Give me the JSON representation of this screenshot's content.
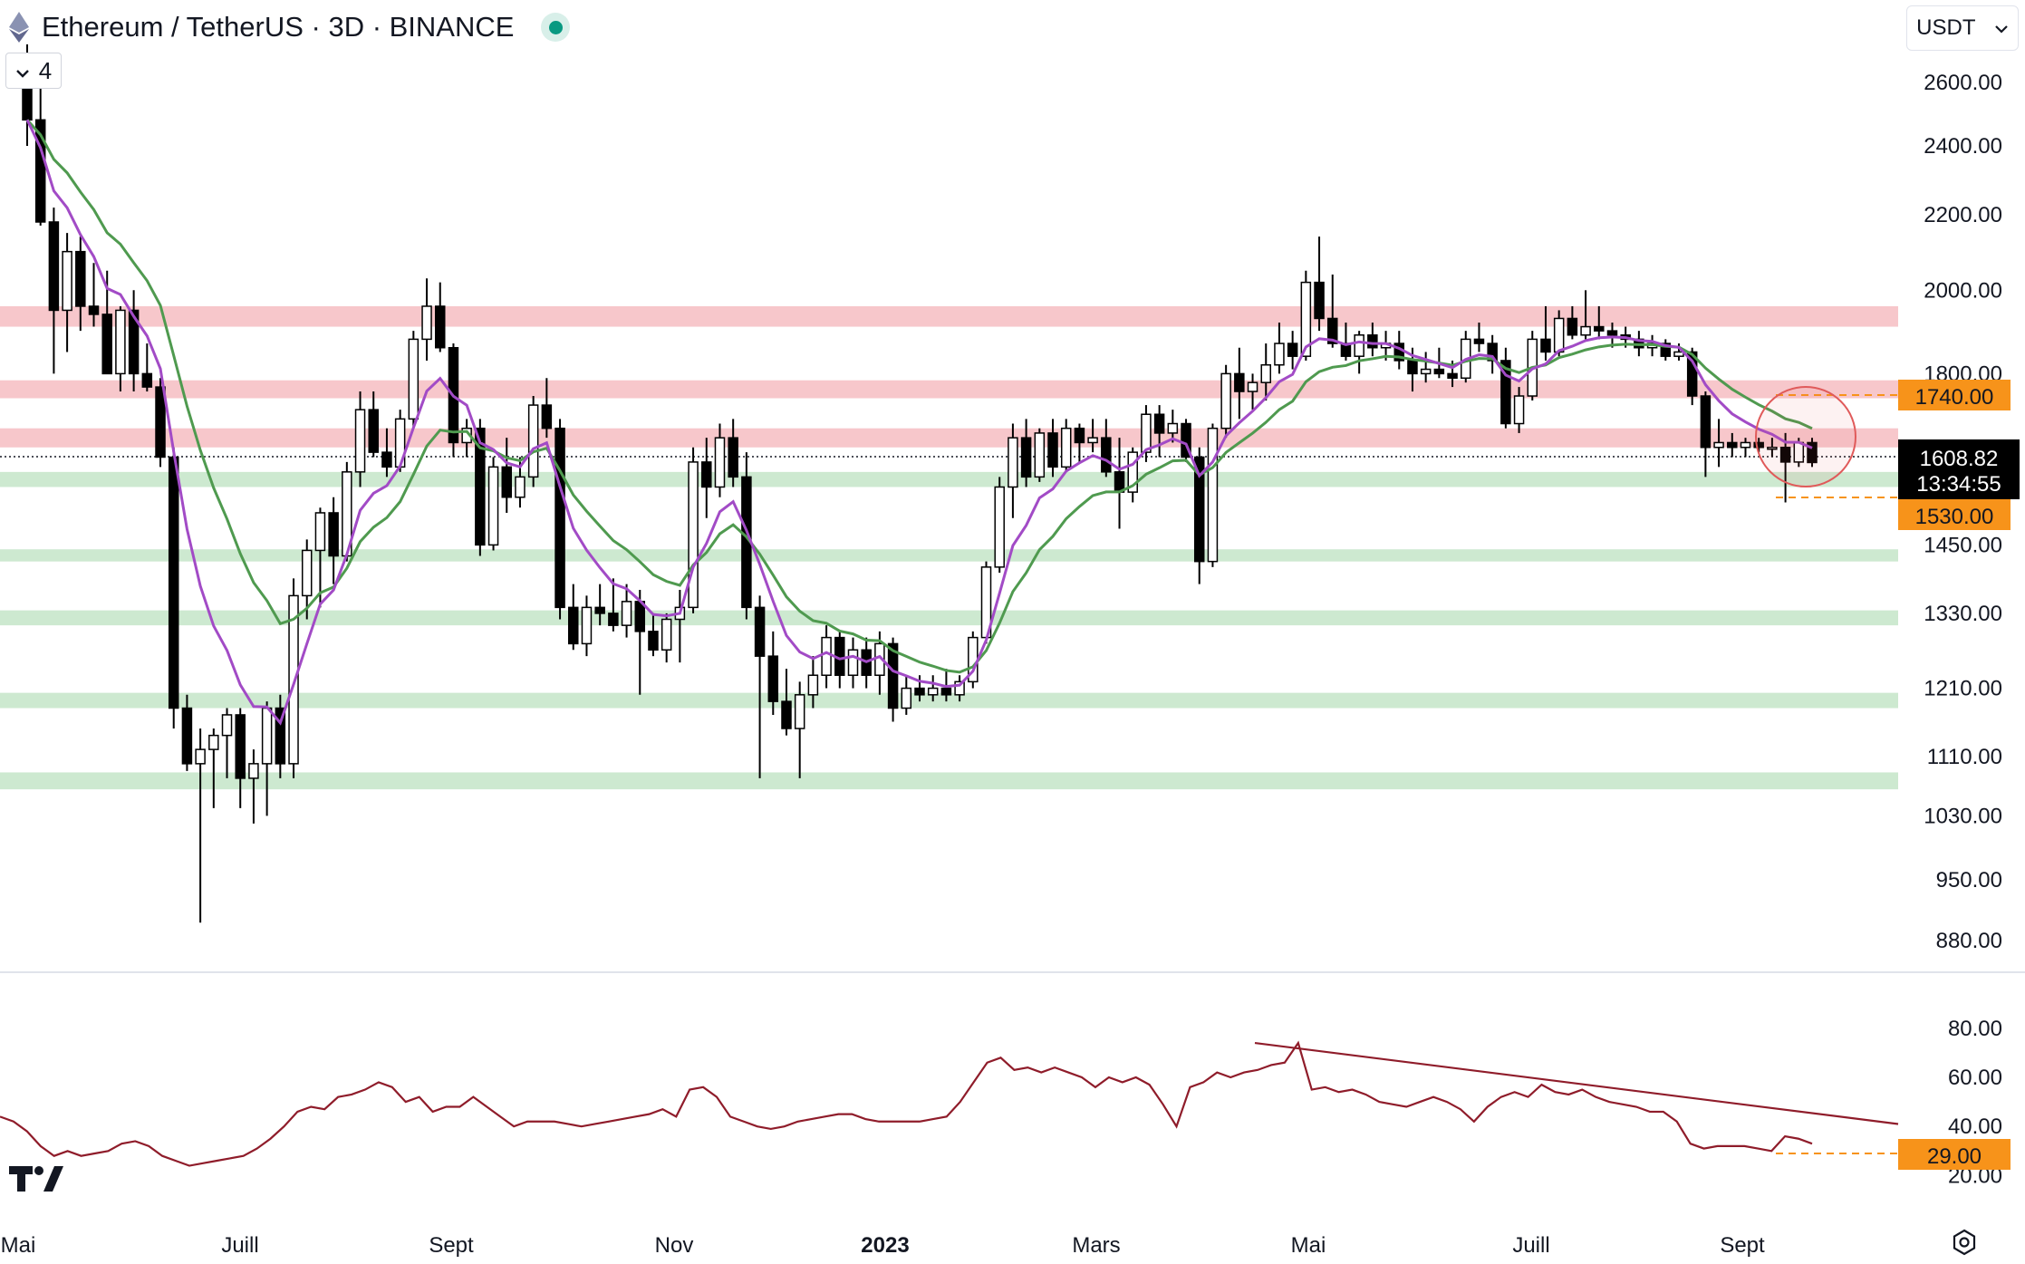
{
  "header": {
    "title": "Ethereum / TetherUS · 3D · BINANCE",
    "collapse_count": "4",
    "currency": "USDT",
    "icons": [
      "ethereum-icon",
      "live-status-dot",
      "chevron-down-icon",
      "tradingview-logo",
      "settings-icon"
    ]
  },
  "price_axis": {
    "ticks": [
      "2600.00",
      "2400.00",
      "2200.00",
      "2000.00",
      "1800.00",
      "1450.00",
      "1330.00",
      "1210.00",
      "1110.00",
      "1030.00",
      "950.00",
      "880.00"
    ],
    "level_upper": "1740.00",
    "level_lower": "1530.00",
    "last_price": "1608.82",
    "countdown": "13:34:55"
  },
  "rsi_axis": {
    "ticks": [
      "80.00",
      "60.00",
      "40.00",
      "20.00"
    ],
    "level": "29.00"
  },
  "time_axis": [
    "Mai",
    "Juill",
    "Sept",
    "Nov",
    "2023",
    "Mars",
    "Mai",
    "Juill",
    "Sept"
  ],
  "colors": {
    "candle": "#000000",
    "ema_fast": "#a24bc6",
    "ema_slow": "#4f9a4f",
    "resistance_zone": "#f7c7cb",
    "support_zone": "#cde9d0",
    "rsi_line": "#8f1c2a",
    "label_bg": "#f7931a",
    "last_price_bg": "#000000",
    "marker_circle": "#e05a5a"
  },
  "chart_data": {
    "type": "candlestick",
    "symbol": "Ethereum / TetherUS",
    "interval": "3D",
    "exchange": "BINANCE",
    "price_scale": "log",
    "price_range": [
      860,
      2700
    ],
    "resistance_zones": [
      [
        1910,
        1960
      ],
      [
        1745,
        1785
      ],
      [
        1640,
        1680
      ]
    ],
    "support_zones": [
      [
        1560,
        1590
      ],
      [
        1420,
        1442
      ],
      [
        1310,
        1335
      ],
      [
        1180,
        1203
      ],
      [
        1065,
        1088
      ]
    ],
    "horizontal_levels": [
      1740,
      1530
    ],
    "last_price": 1608.82,
    "candles_ohlc": [
      [
        2660,
        2820,
        2400,
        2480
      ],
      [
        2480,
        2650,
        2170,
        2180
      ],
      [
        2180,
        2220,
        1800,
        1950
      ],
      [
        1950,
        2150,
        1850,
        2100
      ],
      [
        2100,
        2140,
        1900,
        1960
      ],
      [
        1960,
        2070,
        1910,
        1940
      ],
      [
        1940,
        2050,
        1800,
        1800
      ],
      [
        1800,
        1960,
        1760,
        1950
      ],
      [
        1950,
        2000,
        1760,
        1800
      ],
      [
        1800,
        1870,
        1760,
        1770
      ],
      [
        1770,
        1790,
        1600,
        1620
      ],
      [
        1620,
        1640,
        1150,
        1180
      ],
      [
        1180,
        1200,
        1090,
        1100
      ],
      [
        1100,
        1150,
        900,
        1120
      ],
      [
        1120,
        1150,
        1040,
        1140
      ],
      [
        1140,
        1180,
        1080,
        1170
      ],
      [
        1170,
        1180,
        1040,
        1080
      ],
      [
        1080,
        1120,
        1020,
        1100
      ],
      [
        1100,
        1190,
        1030,
        1180
      ],
      [
        1180,
        1200,
        1080,
        1100
      ],
      [
        1100,
        1390,
        1080,
        1360
      ],
      [
        1360,
        1460,
        1320,
        1440
      ],
      [
        1440,
        1520,
        1340,
        1510
      ],
      [
        1510,
        1540,
        1380,
        1430
      ],
      [
        1430,
        1610,
        1420,
        1590
      ],
      [
        1590,
        1760,
        1560,
        1720
      ],
      [
        1720,
        1760,
        1620,
        1630
      ],
      [
        1630,
        1680,
        1580,
        1600
      ],
      [
        1600,
        1720,
        1590,
        1700
      ],
      [
        1700,
        1900,
        1680,
        1880
      ],
      [
        1880,
        2030,
        1830,
        1960
      ],
      [
        1960,
        2020,
        1850,
        1860
      ],
      [
        1860,
        1870,
        1620,
        1650
      ],
      [
        1650,
        1700,
        1620,
        1680
      ],
      [
        1680,
        1700,
        1430,
        1450
      ],
      [
        1450,
        1620,
        1440,
        1600
      ],
      [
        1600,
        1660,
        1510,
        1540
      ],
      [
        1540,
        1620,
        1520,
        1580
      ],
      [
        1580,
        1750,
        1560,
        1730
      ],
      [
        1730,
        1790,
        1660,
        1680
      ],
      [
        1680,
        1700,
        1320,
        1340
      ],
      [
        1340,
        1380,
        1270,
        1280
      ],
      [
        1280,
        1360,
        1260,
        1340
      ],
      [
        1340,
        1380,
        1310,
        1330
      ],
      [
        1330,
        1390,
        1300,
        1310
      ],
      [
        1310,
        1380,
        1290,
        1350
      ],
      [
        1350,
        1370,
        1200,
        1300
      ],
      [
        1300,
        1330,
        1260,
        1270
      ],
      [
        1270,
        1330,
        1250,
        1320
      ],
      [
        1320,
        1370,
        1250,
        1340
      ],
      [
        1340,
        1640,
        1330,
        1610
      ],
      [
        1610,
        1660,
        1500,
        1560
      ],
      [
        1560,
        1690,
        1540,
        1660
      ],
      [
        1660,
        1700,
        1560,
        1580
      ],
      [
        1580,
        1630,
        1320,
        1340
      ],
      [
        1340,
        1360,
        1080,
        1260
      ],
      [
        1260,
        1300,
        1170,
        1190
      ],
      [
        1190,
        1240,
        1140,
        1150
      ],
      [
        1150,
        1220,
        1080,
        1200
      ],
      [
        1200,
        1260,
        1180,
        1230
      ],
      [
        1230,
        1310,
        1210,
        1290
      ],
      [
        1290,
        1300,
        1210,
        1230
      ],
      [
        1230,
        1290,
        1210,
        1270
      ],
      [
        1270,
        1290,
        1210,
        1230
      ],
      [
        1230,
        1300,
        1200,
        1280
      ],
      [
        1280,
        1290,
        1160,
        1180
      ],
      [
        1180,
        1230,
        1170,
        1210
      ],
      [
        1210,
        1230,
        1190,
        1200
      ],
      [
        1200,
        1230,
        1190,
        1210
      ],
      [
        1210,
        1240,
        1190,
        1200
      ],
      [
        1200,
        1230,
        1190,
        1220
      ],
      [
        1220,
        1300,
        1210,
        1290
      ],
      [
        1290,
        1420,
        1280,
        1410
      ],
      [
        1410,
        1580,
        1400,
        1560
      ],
      [
        1560,
        1690,
        1500,
        1660
      ],
      [
        1660,
        1700,
        1560,
        1580
      ],
      [
        1580,
        1680,
        1570,
        1670
      ],
      [
        1670,
        1700,
        1580,
        1600
      ],
      [
        1600,
        1700,
        1590,
        1680
      ],
      [
        1680,
        1690,
        1610,
        1650
      ],
      [
        1650,
        1700,
        1630,
        1660
      ],
      [
        1660,
        1700,
        1580,
        1590
      ],
      [
        1590,
        1660,
        1480,
        1550
      ],
      [
        1550,
        1640,
        1530,
        1630
      ],
      [
        1630,
        1730,
        1610,
        1710
      ],
      [
        1710,
        1730,
        1620,
        1670
      ],
      [
        1670,
        1720,
        1650,
        1690
      ],
      [
        1690,
        1700,
        1610,
        1620
      ],
      [
        1620,
        1640,
        1380,
        1420
      ],
      [
        1420,
        1690,
        1410,
        1680
      ],
      [
        1680,
        1820,
        1660,
        1800
      ],
      [
        1800,
        1860,
        1700,
        1760
      ],
      [
        1760,
        1800,
        1720,
        1780
      ],
      [
        1780,
        1870,
        1740,
        1820
      ],
      [
        1820,
        1920,
        1800,
        1870
      ],
      [
        1870,
        1900,
        1810,
        1840
      ],
      [
        1840,
        2050,
        1830,
        2020
      ],
      [
        2020,
        2140,
        1900,
        1930
      ],
      [
        1930,
        2040,
        1860,
        1870
      ],
      [
        1870,
        1920,
        1830,
        1840
      ],
      [
        1840,
        1900,
        1800,
        1890
      ],
      [
        1890,
        1920,
        1840,
        1860
      ],
      [
        1860,
        1900,
        1830,
        1870
      ],
      [
        1870,
        1900,
        1810,
        1830
      ],
      [
        1830,
        1860,
        1760,
        1800
      ],
      [
        1800,
        1850,
        1780,
        1810
      ],
      [
        1810,
        1860,
        1790,
        1800
      ],
      [
        1800,
        1830,
        1770,
        1790
      ],
      [
        1790,
        1900,
        1780,
        1880
      ],
      [
        1880,
        1920,
        1850,
        1870
      ],
      [
        1870,
        1890,
        1800,
        1830
      ],
      [
        1830,
        1860,
        1680,
        1690
      ],
      [
        1690,
        1770,
        1670,
        1750
      ],
      [
        1750,
        1900,
        1740,
        1880
      ],
      [
        1880,
        1960,
        1830,
        1850
      ],
      [
        1850,
        1950,
        1840,
        1930
      ],
      [
        1930,
        1960,
        1880,
        1890
      ],
      [
        1890,
        2000,
        1880,
        1910
      ],
      [
        1910,
        1960,
        1880,
        1900
      ],
      [
        1900,
        1920,
        1860,
        1890
      ],
      [
        1890,
        1910,
        1860,
        1880
      ],
      [
        1880,
        1900,
        1840,
        1860
      ],
      [
        1860,
        1890,
        1840,
        1870
      ],
      [
        1870,
        1880,
        1830,
        1840
      ],
      [
        1840,
        1870,
        1830,
        1850
      ],
      [
        1850,
        1860,
        1730,
        1750
      ],
      [
        1750,
        1760,
        1580,
        1640
      ],
      [
        1640,
        1700,
        1600,
        1650
      ],
      [
        1650,
        1670,
        1620,
        1640
      ],
      [
        1640,
        1660,
        1620,
        1650
      ],
      [
        1650,
        1660,
        1630,
        1640
      ],
      [
        1640,
        1660,
        1620,
        1640
      ],
      [
        1640,
        1670,
        1530,
        1610
      ],
      [
        1610,
        1660,
        1600,
        1650
      ],
      [
        1650,
        1660,
        1600,
        1609
      ]
    ],
    "rsi": {
      "range": [
        0,
        100
      ],
      "values": [
        44,
        42,
        38,
        32,
        28,
        30,
        28,
        29,
        30,
        33,
        34,
        32,
        28,
        26,
        24,
        25,
        26,
        27,
        28,
        31,
        35,
        40,
        46,
        48,
        47,
        52,
        53,
        55,
        58,
        56,
        50,
        52,
        46,
        48,
        48,
        52,
        48,
        44,
        40,
        42,
        42,
        42,
        41,
        40,
        41,
        42,
        43,
        44,
        45,
        47,
        44,
        55,
        56,
        52,
        44,
        42,
        40,
        39,
        40,
        42,
        43,
        44,
        45,
        45,
        43,
        42,
        42,
        42,
        42,
        43,
        44,
        50,
        58,
        66,
        68,
        63,
        64,
        62,
        64,
        62,
        60,
        56,
        60,
        58,
        60,
        57,
        49,
        40,
        56,
        58,
        62,
        60,
        62,
        63,
        65,
        66,
        74,
        55,
        56,
        54,
        55,
        53,
        50,
        49,
        48,
        50,
        52,
        50,
        47,
        42,
        48,
        52,
        54,
        52,
        57,
        54,
        53,
        55,
        52,
        50,
        49,
        48,
        46,
        46,
        42,
        33,
        31,
        32,
        32,
        32,
        31,
        30,
        36,
        35,
        33
      ],
      "trendline": [
        74,
        41
      ],
      "level": 29
    }
  }
}
